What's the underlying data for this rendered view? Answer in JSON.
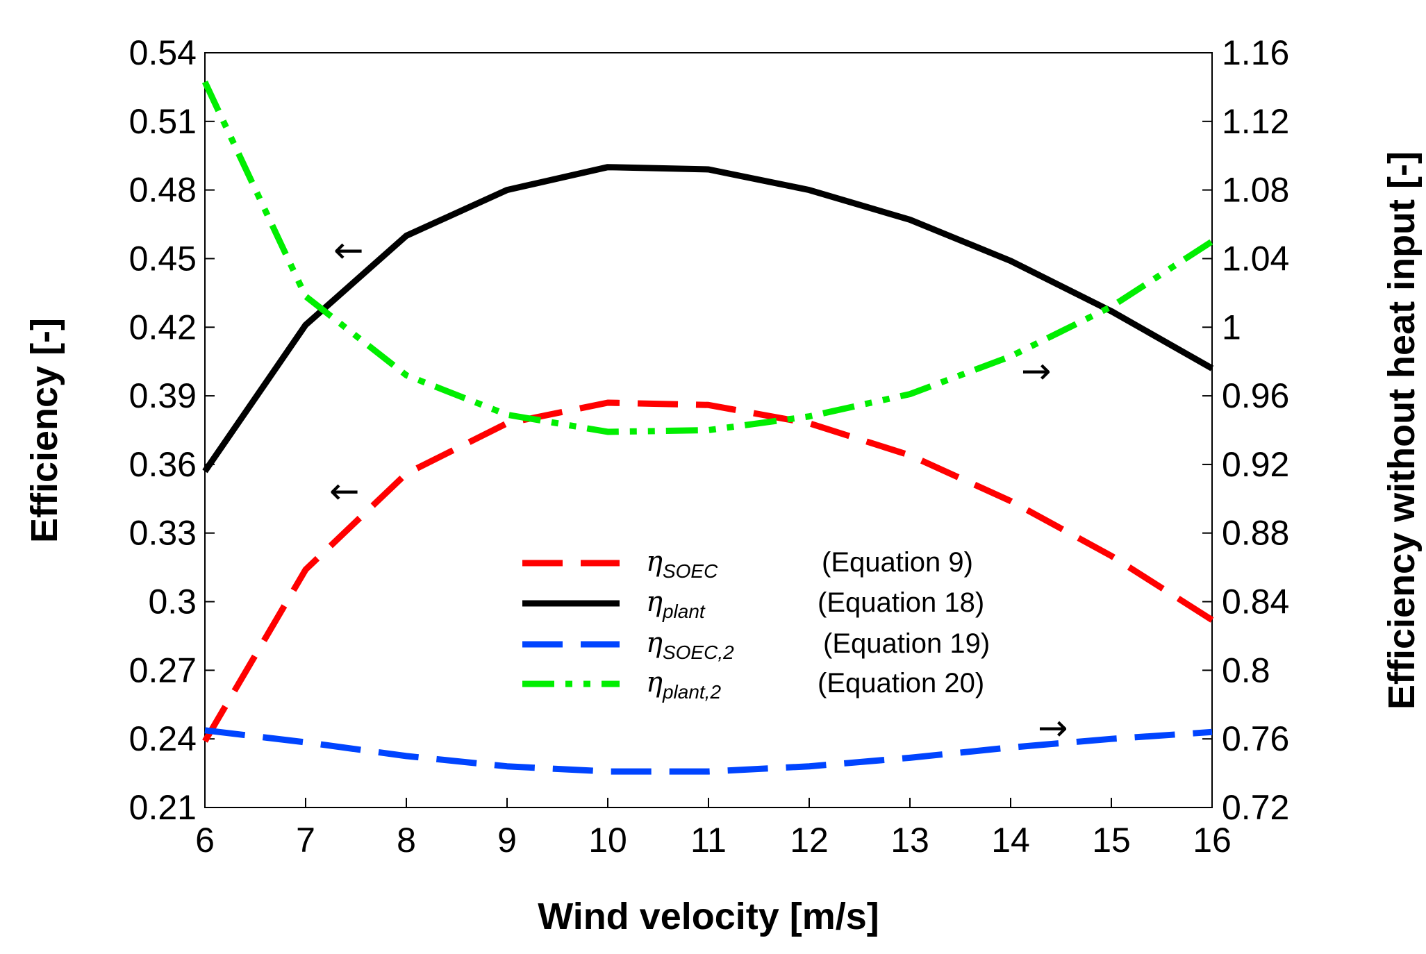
{
  "chart_data": {
    "type": "line",
    "xlabel": "Wind velocity [m/s]",
    "ylabel_left": "Efficiency [-]",
    "ylabel_right": "Efficiency without heat input [-]",
    "x": [
      6,
      7,
      8,
      9,
      10,
      11,
      12,
      13,
      14,
      15,
      16
    ],
    "xlim": [
      6,
      16
    ],
    "ylim_left": [
      0.21,
      0.54
    ],
    "ylim_right": [
      0.72,
      1.16
    ],
    "x_ticks": [
      "6",
      "7",
      "8",
      "9",
      "10",
      "11",
      "12",
      "13",
      "14",
      "15",
      "16"
    ],
    "y_ticks_left": [
      "0.21",
      "0.24",
      "0.27",
      "0.3",
      "0.33",
      "0.36",
      "0.39",
      "0.42",
      "0.45",
      "0.48",
      "0.51",
      "0.54"
    ],
    "y_ticks_right": [
      "0.72",
      "0.76",
      "0.8",
      "0.84",
      "0.88",
      "0.92",
      "0.96",
      "1",
      "1.04",
      "1.08",
      "1.12",
      "1.16"
    ],
    "series": [
      {
        "name": "η_SOEC",
        "symbol": "η",
        "subscript": "SOEC",
        "equation": "(Equation 9)",
        "axis": "left",
        "color": "#ff0000",
        "dash": "dash",
        "values": [
          0.239,
          0.314,
          0.356,
          0.378,
          0.387,
          0.386,
          0.378,
          0.364,
          0.344,
          0.32,
          0.292
        ]
      },
      {
        "name": "η_plant",
        "symbol": "η",
        "subscript": "plant",
        "equation": "(Equation 18)",
        "axis": "left",
        "color": "#000000",
        "dash": "solid",
        "values": [
          0.357,
          0.421,
          0.46,
          0.48,
          0.49,
          0.489,
          0.48,
          0.467,
          0.449,
          0.427,
          0.402
        ]
      },
      {
        "name": "η_SOEC,2",
        "symbol": "η",
        "subscript": "SOEC,2",
        "equation": "(Equation 19)",
        "axis": "right",
        "color": "#0044ff",
        "dash": "dash",
        "values": [
          0.765,
          0.758,
          0.75,
          0.744,
          0.741,
          0.741,
          0.744,
          0.749,
          0.755,
          0.76,
          0.764
        ]
      },
      {
        "name": "η_plant,2",
        "symbol": "η",
        "subscript": "plant,2",
        "equation": "(Equation 20)",
        "axis": "right",
        "color": "#00ee00",
        "dash": "dashdotdot",
        "values": [
          1.143,
          1.018,
          0.972,
          0.949,
          0.939,
          0.94,
          0.948,
          0.961,
          0.983,
          1.012,
          1.05
        ]
      }
    ],
    "annotations": [
      {
        "text": "←",
        "points_to": "left axis",
        "near": "η_plant at x≈7.5"
      },
      {
        "text": "←",
        "points_to": "left axis",
        "near": "η_SOEC at x≈7.5"
      },
      {
        "text": "→",
        "points_to": "right axis",
        "near": "η_plant,2 at x≈14.5"
      },
      {
        "text": "→",
        "points_to": "right axis",
        "near": "η_SOEC,2 at x≈14.7"
      }
    ],
    "legend_position": "center-bottom",
    "grid": false
  }
}
